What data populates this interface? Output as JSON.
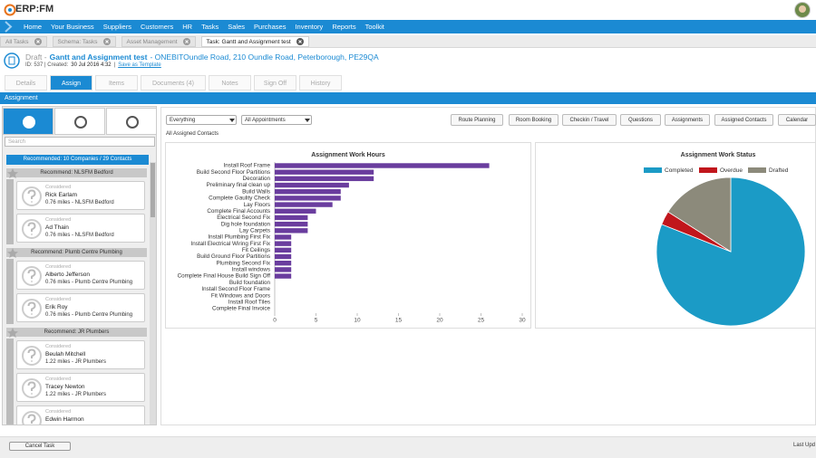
{
  "header": {
    "logo": "ERP:FM"
  },
  "nav": [
    "Home",
    "Your Business",
    "Suppliers",
    "Customers",
    "HR",
    "Tasks",
    "Sales",
    "Purchases",
    "Inventory",
    "Reports",
    "Toolkit"
  ],
  "tabs": [
    "All Tasks",
    "Schema: Tasks",
    "Asset Management",
    "Task: Gantt and Assignment test"
  ],
  "task": {
    "status": "Draft -",
    "title": "Gantt and Assignment test",
    "address": "- ONEBITOundle Road, 210 Oundle Road, Peterborough, PE29QA",
    "meta": "ID: 537 | Created:",
    "date": "30 Jul 2016 4:32",
    "separator": "|",
    "template": "Save as Template"
  },
  "subtabs": [
    "Details",
    "Assign",
    "Items",
    "Documents (4)",
    "Notes",
    "Sign Off",
    "History"
  ],
  "section": "Assignment",
  "sidebar": {
    "search": "Search",
    "summary": "Recommended: 10 Companies / 29 Contacts",
    "groups": [
      {
        "title": "Recommend: NLSFM Bedford",
        "contacts": [
          {
            "status": "Considered",
            "name": "Rick Earlam",
            "detail": "0.76 miles - NLSFM Bedford"
          },
          {
            "status": "Considered",
            "name": "Ad Thain",
            "detail": "0.76 miles - NLSFM Bedford"
          }
        ]
      },
      {
        "title": "Recommend: Plumb Centre Plumbing",
        "contacts": [
          {
            "status": "Considered",
            "name": "Alberto Jefferson",
            "detail": "0.76 miles - Plumb Centre Plumbing"
          },
          {
            "status": "Considered",
            "name": "Erik Roy",
            "detail": "0.76 miles - Plumb Centre Plumbing"
          }
        ]
      },
      {
        "title": "Recommend: JR Plumbers",
        "contacts": [
          {
            "status": "Considered",
            "name": "Beulah Mitchell",
            "detail": "1.22 miles - JR Plumbers"
          },
          {
            "status": "Considered",
            "name": "Tracey Newton",
            "detail": "1.22 miles - JR Plumbers"
          },
          {
            "status": "Considered",
            "name": "Edwin Harmon"
          }
        ]
      }
    ]
  },
  "toolbar": {
    "filters": [
      "Everything",
      "All Appointments"
    ],
    "buttons": [
      "Route Planning",
      "Room Booking",
      "Checkin / Travel",
      "Questions",
      "Assignments",
      "Assigned Contacts",
      "Calendar"
    ]
  },
  "contacts_heading": "All Assigned Contacts",
  "chart_data": [
    {
      "type": "bar",
      "orientation": "horizontal",
      "title": "Assignment Work Hours",
      "categories": [
        "Install Roof Frame",
        "Build Second Floor Partitions",
        "Decoration",
        "Preliminary final clean up",
        "Build Walls",
        "Complete Gaulity Check",
        "Lay Floors",
        "Complete Final Accounts",
        "Electrical Second Fix",
        "Dig hole foundation",
        "Lay Carpets",
        "Install Plumbing First Fix",
        "Install Electrical Wiring First Fix",
        "Fit Ceilings",
        "Build Ground Floor Partitions",
        "Plumbing Second Fix",
        "Install windows",
        "Complete Final House Build Sign Off",
        "Build foundation",
        "Install Second Floor Frame",
        "Fit Windows and Doors",
        "Install Roof Tiles",
        "Complete Final Invoice"
      ],
      "values": [
        26,
        12,
        12,
        9,
        8,
        8,
        7,
        5,
        4,
        4,
        4,
        2,
        2,
        2,
        2,
        2,
        2,
        2,
        0,
        0,
        0,
        0,
        0
      ],
      "color": "#6a3d9e",
      "xlim": [
        0,
        30
      ],
      "xticks": [
        0,
        5,
        10,
        15,
        20,
        25,
        30
      ]
    },
    {
      "type": "pie",
      "title": "Assignment Work Status",
      "categories": [
        "Completed",
        "Overdue",
        "Drafted"
      ],
      "values": [
        81,
        3,
        16
      ],
      "colors": [
        "#1b9bc6",
        "#c1161c",
        "#8c8a7b"
      ],
      "legend": "top"
    }
  ],
  "footer": {
    "cancel": "Cancel Task",
    "last_updated": "Last Upd"
  }
}
